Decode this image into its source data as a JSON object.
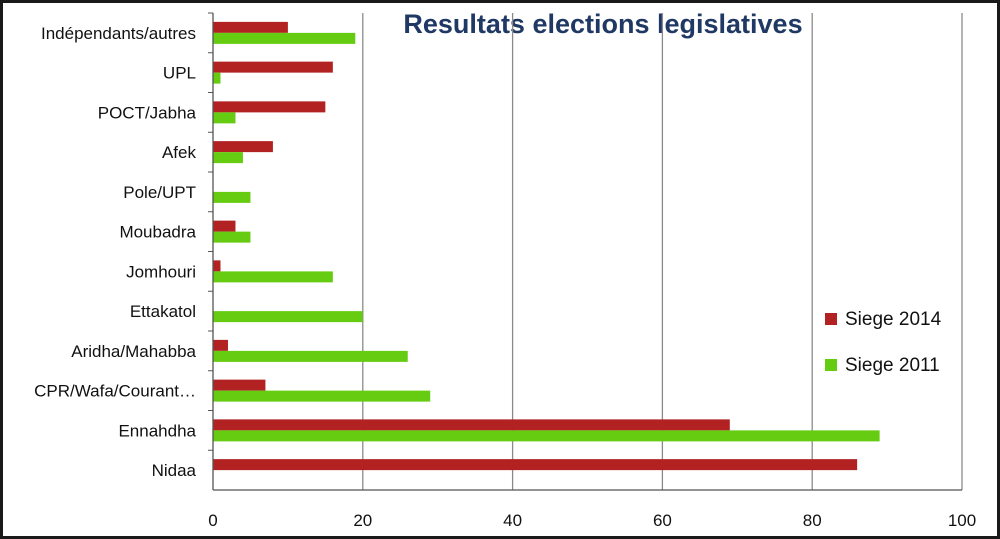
{
  "chart_data": {
    "type": "bar",
    "orientation": "horizontal",
    "title": "Resultats elections legislatives",
    "categories": [
      "Indépendants/autres",
      "UPL",
      "POCT/Jabha",
      "Afek",
      "Pole/UPT",
      "Moubadra",
      "Jomhouri",
      "Ettakatol",
      "Aridha/Mahabba",
      "CPR/Wafa/Courant…",
      "Ennahdha",
      "Nidaa"
    ],
    "series": [
      {
        "name": "Siege 2014",
        "color": "#b22222",
        "values": [
          10,
          16,
          15,
          8,
          0,
          3,
          1,
          0,
          2,
          7,
          69,
          86
        ]
      },
      {
        "name": "Siege 2011",
        "color": "#66cc11",
        "values": [
          19,
          1,
          3,
          4,
          5,
          5,
          16,
          20,
          26,
          29,
          89,
          0
        ]
      }
    ],
    "xlim": [
      0,
      100
    ],
    "xticks": [
      0,
      20,
      40,
      60,
      80,
      100
    ],
    "grid": true,
    "legend_position": "right"
  }
}
